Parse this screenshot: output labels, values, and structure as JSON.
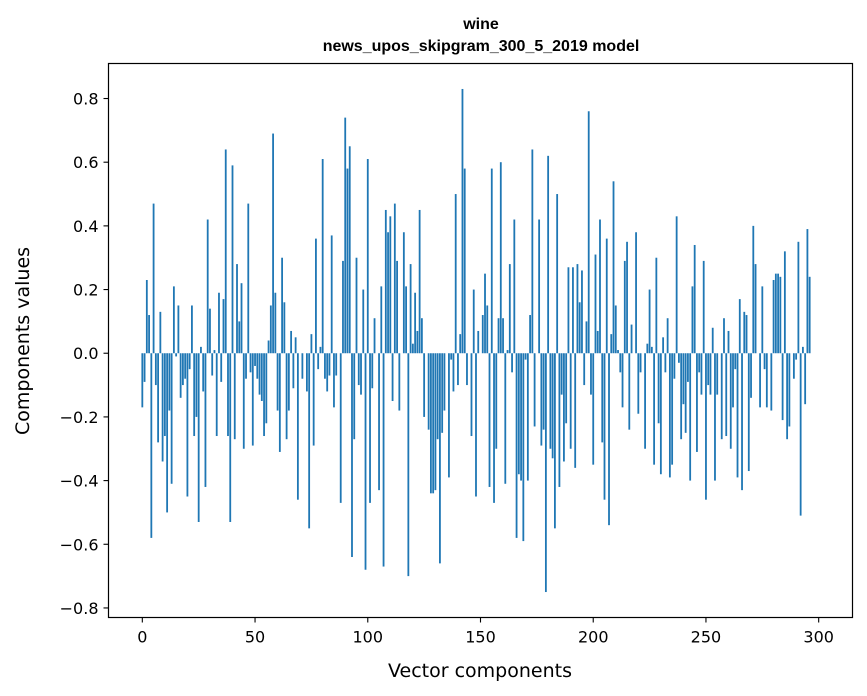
{
  "chart_data": {
    "type": "bar",
    "title_line1": "wine",
    "title_line2": "news_upos_skipgram_300_5_2019 model",
    "xlabel": "Vector components",
    "ylabel": "Components values",
    "xlim": [
      -15,
      315
    ],
    "ylim": [
      -0.83,
      0.91
    ],
    "xticks": [
      0,
      50,
      100,
      150,
      200,
      250,
      300
    ],
    "xtick_labels": [
      "0",
      "50",
      "100",
      "150",
      "200",
      "250",
      "300"
    ],
    "yticks": [
      -0.8,
      -0.6,
      -0.4,
      -0.2,
      0.0,
      0.2,
      0.4,
      0.6,
      0.8
    ],
    "ytick_labels": [
      "−0.8",
      "−0.6",
      "−0.4",
      "−0.2",
      "0.0",
      "0.2",
      "0.4",
      "0.6",
      "0.8"
    ],
    "bar_color": "#1f77b4",
    "grid": false,
    "values": [
      -0.17,
      -0.09,
      0.23,
      0.12,
      -0.58,
      0.47,
      -0.1,
      -0.28,
      0.13,
      -0.34,
      -0.26,
      -0.5,
      -0.18,
      -0.41,
      0.21,
      -0.01,
      0.15,
      -0.14,
      -0.1,
      -0.08,
      -0.45,
      -0.05,
      0.15,
      -0.26,
      -0.2,
      -0.53,
      0.02,
      -0.12,
      -0.42,
      0.42,
      0.14,
      -0.07,
      0.01,
      -0.26,
      0.19,
      -0.09,
      0.17,
      0.64,
      -0.26,
      -0.53,
      0.59,
      -0.27,
      0.28,
      0.1,
      0.22,
      -0.3,
      -0.08,
      0.47,
      -0.06,
      -0.29,
      -0.04,
      -0.08,
      -0.13,
      -0.15,
      -0.26,
      -0.22,
      0.04,
      0.15,
      0.69,
      0.19,
      -0.18,
      -0.31,
      0.3,
      0.16,
      -0.27,
      -0.18,
      0.07,
      -0.11,
      0.05,
      -0.46,
      0.0,
      -0.08,
      0.0,
      -0.12,
      -0.55,
      0.06,
      -0.29,
      0.36,
      -0.05,
      0.02,
      0.61,
      -0.08,
      -0.12,
      -0.07,
      0.37,
      -0.17,
      -0.07,
      0.0,
      -0.47,
      0.29,
      0.74,
      0.58,
      0.65,
      -0.64,
      -0.27,
      0.3,
      -0.1,
      -0.13,
      0.2,
      -0.68,
      0.61,
      -0.47,
      -0.11,
      0.11,
      0.0,
      -0.43,
      0.21,
      -0.67,
      0.45,
      0.38,
      0.43,
      -0.15,
      0.47,
      0.29,
      -0.18,
      0.0,
      0.38,
      0.21,
      -0.7,
      0.28,
      0.03,
      0.19,
      0.07,
      0.45,
      0.11,
      -0.2,
      0.0,
      -0.24,
      -0.44,
      -0.44,
      -0.43,
      -0.27,
      -0.66,
      -0.25,
      -0.18,
      0.0,
      -0.39,
      -0.02,
      -0.12,
      0.5,
      -0.1,
      0.06,
      0.83,
      0.58,
      -0.1,
      0.0,
      -0.26,
      0.2,
      -0.45,
      0.07,
      0.0,
      0.12,
      0.25,
      0.15,
      -0.42,
      0.58,
      -0.47,
      -0.3,
      0.11,
      0.6,
      0.11,
      -0.41,
      0.01,
      0.28,
      -0.06,
      0.42,
      -0.58,
      -0.38,
      -0.4,
      -0.59,
      -0.02,
      -0.4,
      0.12,
      0.64,
      -0.23,
      0.0,
      0.42,
      -0.29,
      -0.24,
      -0.75,
      0.62,
      -0.3,
      -0.33,
      -0.55,
      0.5,
      -0.42,
      -0.13,
      -0.34,
      -0.22,
      0.27,
      -0.3,
      0.27,
      -0.36,
      0.28,
      0.16,
      0.26,
      -0.1,
      0.1,
      0.76,
      -0.13,
      -0.35,
      0.31,
      0.07,
      0.42,
      -0.28,
      -0.46,
      0.36,
      -0.54,
      0.06,
      0.54,
      0.15,
      0.01,
      -0.06,
      -0.17,
      0.29,
      0.35,
      -0.24,
      0.09,
      0.0,
      0.38,
      -0.19,
      -0.06,
      0.0,
      -0.3,
      0.03,
      0.2,
      0.02,
      -0.35,
      0.3,
      -0.22,
      -0.38,
      0.05,
      -0.06,
      0.11,
      -0.39,
      -0.35,
      -0.08,
      0.43,
      -0.03,
      -0.27,
      -0.16,
      -0.25,
      -0.09,
      -0.4,
      0.21,
      0.34,
      -0.31,
      -0.06,
      -0.13,
      0.29,
      -0.46,
      -0.1,
      -0.13,
      0.08,
      -0.4,
      -0.13,
      0.0,
      -0.27,
      0.11,
      -0.26,
      0.07,
      -0.3,
      -0.17,
      -0.05,
      -0.39,
      0.17,
      -0.43,
      0.13,
      0.12,
      -0.37,
      -0.14,
      0.4,
      0.28,
      0.0,
      -0.17,
      0.21,
      -0.05,
      -0.17,
      0.0,
      -0.18,
      0.23,
      0.25,
      0.25,
      0.24,
      -0.21,
      0.32,
      -0.27,
      -0.23,
      0.0,
      -0.08,
      -0.02,
      0.35,
      -0.51,
      0.02,
      -0.16,
      0.39,
      0.24
    ]
  }
}
